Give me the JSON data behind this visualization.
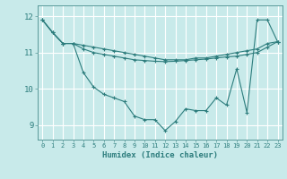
{
  "xlabel": "Humidex (Indice chaleur)",
  "bg_color": "#c8eaea",
  "line_color": "#2d7d7d",
  "grid_color": "#ffffff",
  "xlim": [
    -0.5,
    23.5
  ],
  "ylim": [
    8.6,
    12.3
  ],
  "yticks": [
    9,
    10,
    11,
    12
  ],
  "xticks": [
    0,
    1,
    2,
    3,
    4,
    5,
    6,
    7,
    8,
    9,
    10,
    11,
    12,
    13,
    14,
    15,
    16,
    17,
    18,
    19,
    20,
    21,
    22,
    23
  ],
  "line1": [
    11.9,
    11.55,
    11.25,
    11.25,
    10.45,
    10.05,
    9.85,
    9.75,
    9.65,
    9.25,
    9.15,
    9.15,
    8.85,
    9.1,
    9.45,
    9.4,
    9.4,
    9.75,
    9.55,
    10.55,
    9.35,
    11.9,
    11.9,
    11.3
  ],
  "line2": [
    11.9,
    11.55,
    11.25,
    11.25,
    11.2,
    11.15,
    11.1,
    11.05,
    11.0,
    10.95,
    10.9,
    10.85,
    10.8,
    10.8,
    10.8,
    10.85,
    10.85,
    10.9,
    10.95,
    11.0,
    11.05,
    11.1,
    11.25,
    11.3
  ],
  "line3": [
    11.9,
    11.55,
    11.25,
    11.25,
    11.1,
    11.0,
    10.95,
    10.9,
    10.85,
    10.8,
    10.78,
    10.76,
    10.75,
    10.76,
    10.78,
    10.8,
    10.82,
    10.85,
    10.88,
    10.9,
    10.95,
    11.0,
    11.15,
    11.3
  ]
}
